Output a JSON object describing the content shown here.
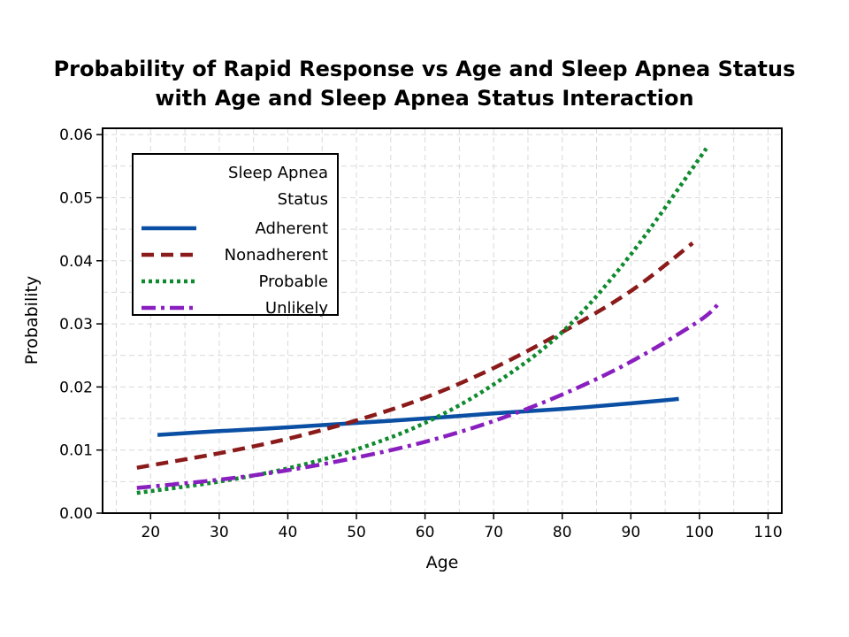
{
  "chart_data": {
    "type": "line",
    "title": [
      "Probability of Rapid Response vs Age and Sleep Apnea Status",
      "with Age and Sleep Apnea Status Interaction"
    ],
    "xlabel": "Age",
    "ylabel": "Probability",
    "xlim": [
      13,
      112
    ],
    "ylim": [
      0,
      0.061
    ],
    "xticks": [
      20,
      30,
      40,
      50,
      60,
      70,
      80,
      90,
      100,
      110
    ],
    "yticks": [
      0,
      0.01,
      0.02,
      0.03,
      0.04,
      0.05,
      0.06
    ],
    "ytick_labels": [
      "0.00",
      "0.01",
      "0.02",
      "0.03",
      "0.04",
      "0.05",
      "0.06"
    ],
    "grid": true,
    "legend": {
      "title": [
        "Sleep Apnea",
        "Status"
      ],
      "placement": "top-left"
    },
    "series": [
      {
        "name": "Adherent",
        "color": "#0a4fa3",
        "style": "solid",
        "x": [
          21,
          30,
          40,
          50,
          60,
          70,
          80,
          90,
          97
        ],
        "y": [
          0.0124,
          0.013,
          0.0136,
          0.0143,
          0.015,
          0.0158,
          0.0165,
          0.0174,
          0.0181
        ]
      },
      {
        "name": "Nonadherent",
        "color": "#8b1a1a",
        "style": "dash",
        "x": [
          18,
          30,
          40,
          50,
          60,
          70,
          80,
          90,
          99
        ],
        "y": [
          0.0072,
          0.0095,
          0.0118,
          0.0147,
          0.0183,
          0.023,
          0.0287,
          0.0352,
          0.0428
        ]
      },
      {
        "name": "Probable",
        "color": "#0f8a2e",
        "style": "dot",
        "x": [
          18,
          30,
          40,
          50,
          60,
          70,
          80,
          90,
          101
        ],
        "y": [
          0.0032,
          0.005,
          0.0071,
          0.0101,
          0.0143,
          0.0204,
          0.0287,
          0.041,
          0.0578
        ]
      },
      {
        "name": "Unlikely",
        "color": "#8a1fbf",
        "style": "dashdot",
        "x": [
          18,
          30,
          40,
          50,
          60,
          70,
          80,
          90,
          100,
          103
        ],
        "y": [
          0.004,
          0.0053,
          0.0068,
          0.0088,
          0.0113,
          0.0146,
          0.0188,
          0.024,
          0.0305,
          0.0335
        ]
      }
    ]
  }
}
